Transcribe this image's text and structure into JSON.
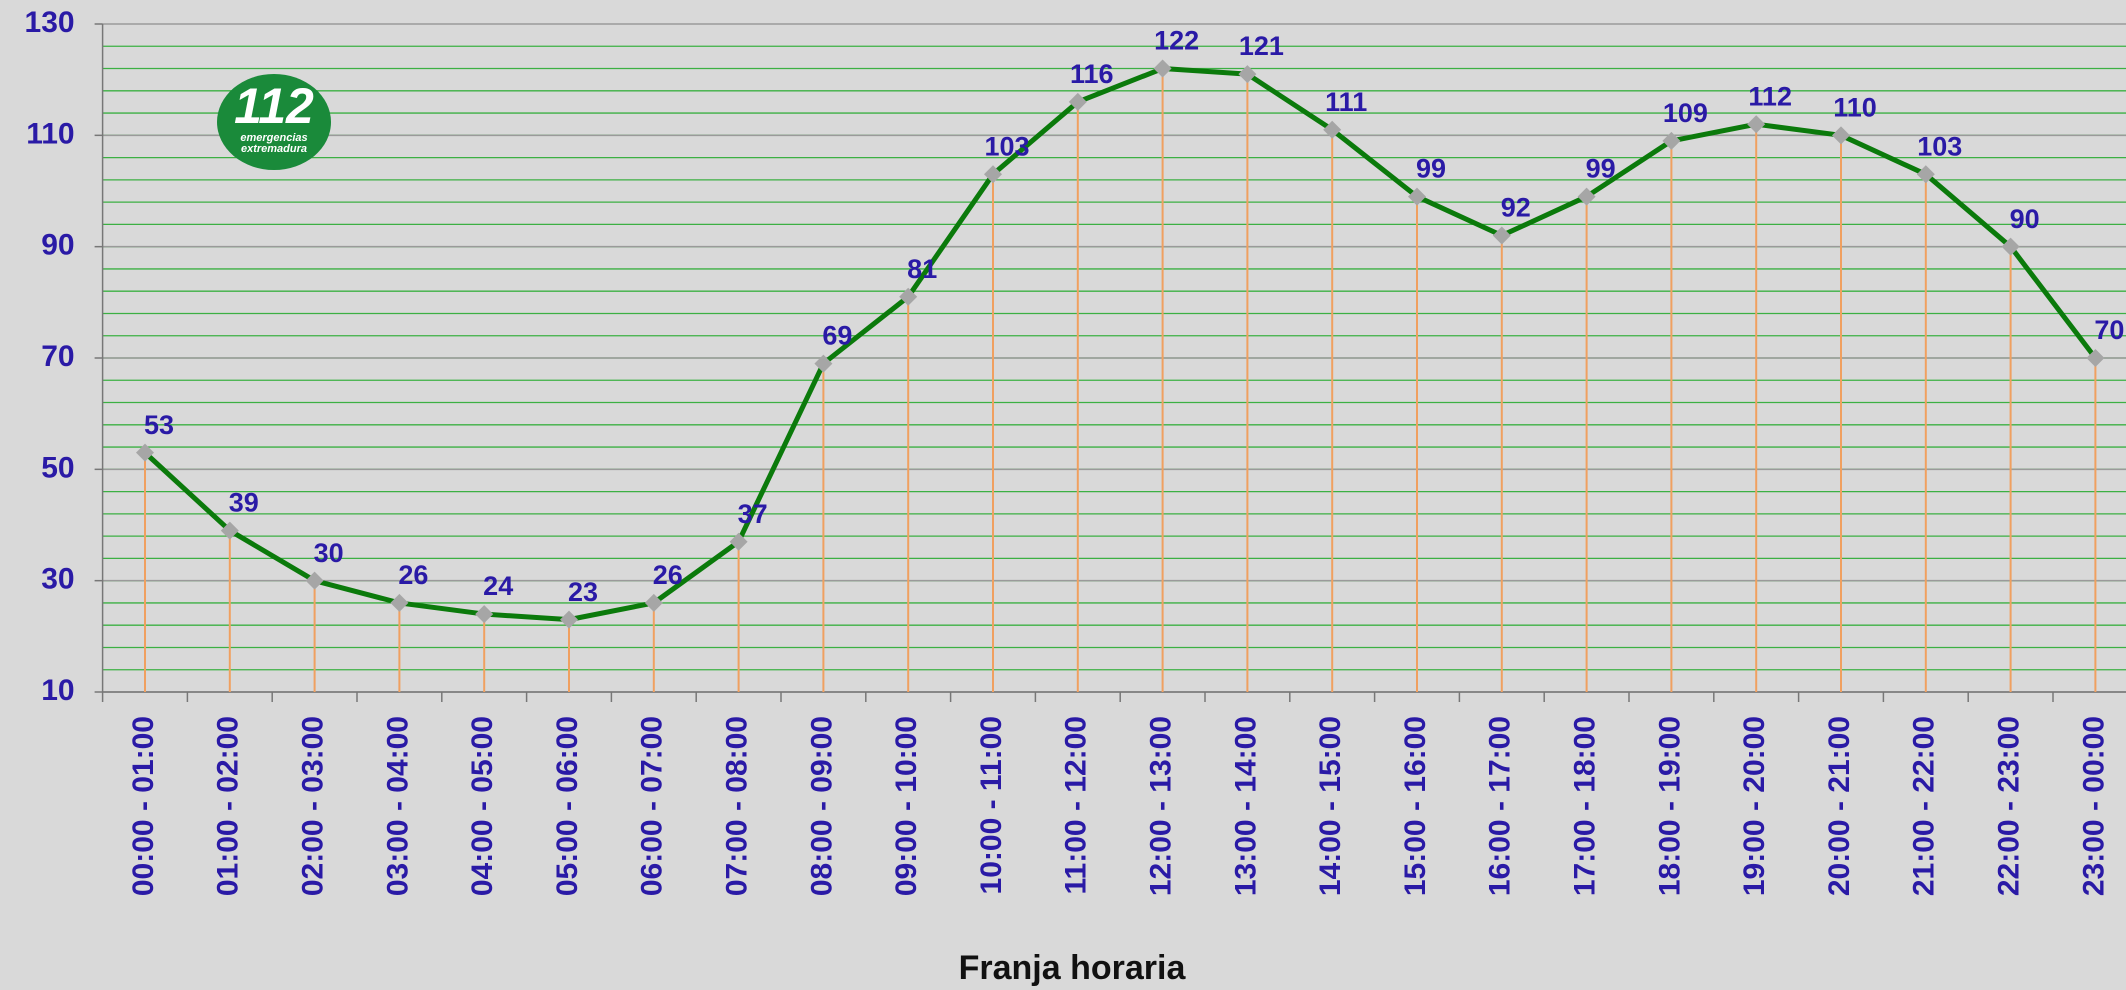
{
  "chart_data": {
    "type": "line",
    "x_label": "Franja horaria",
    "categories": [
      "00:00 - 01:00",
      "01:00 - 02:00",
      "02:00 - 03:00",
      "03:00 - 04:00",
      "04:00 - 05:00",
      "05:00 - 06:00",
      "06:00 - 07:00",
      "07:00 - 08:00",
      "08:00 - 09:00",
      "09:00 - 10:00",
      "10:00 - 11:00",
      "11:00 - 12:00",
      "12:00 - 13:00",
      "13:00 - 14:00",
      "14:00 - 15:00",
      "15:00 - 16:00",
      "16:00 - 17:00",
      "17:00 - 18:00",
      "18:00 - 19:00",
      "19:00 - 20:00",
      "20:00 - 21:00",
      "21:00 - 22:00",
      "22:00 - 23:00",
      "23:00 - 00:00"
    ],
    "values": [
      53,
      39,
      30,
      26,
      24,
      23,
      26,
      37,
      69,
      81,
      103,
      116,
      122,
      121,
      111,
      99,
      92,
      99,
      109,
      112,
      110,
      103,
      90,
      70
    ],
    "color": "#0b7a0b",
    "marker_color": "#a6a6a6",
    "drop_line_color": "#f0a060",
    "ylim": [
      10,
      130
    ],
    "yticks": [
      10,
      30,
      50,
      70,
      90,
      110,
      130
    ],
    "grid": true,
    "minor_grid_step": 4,
    "minor_grid_color": "#3cb043"
  },
  "logo": {
    "number": "112",
    "lines": [
      "emergencias",
      "extremadura"
    ]
  }
}
